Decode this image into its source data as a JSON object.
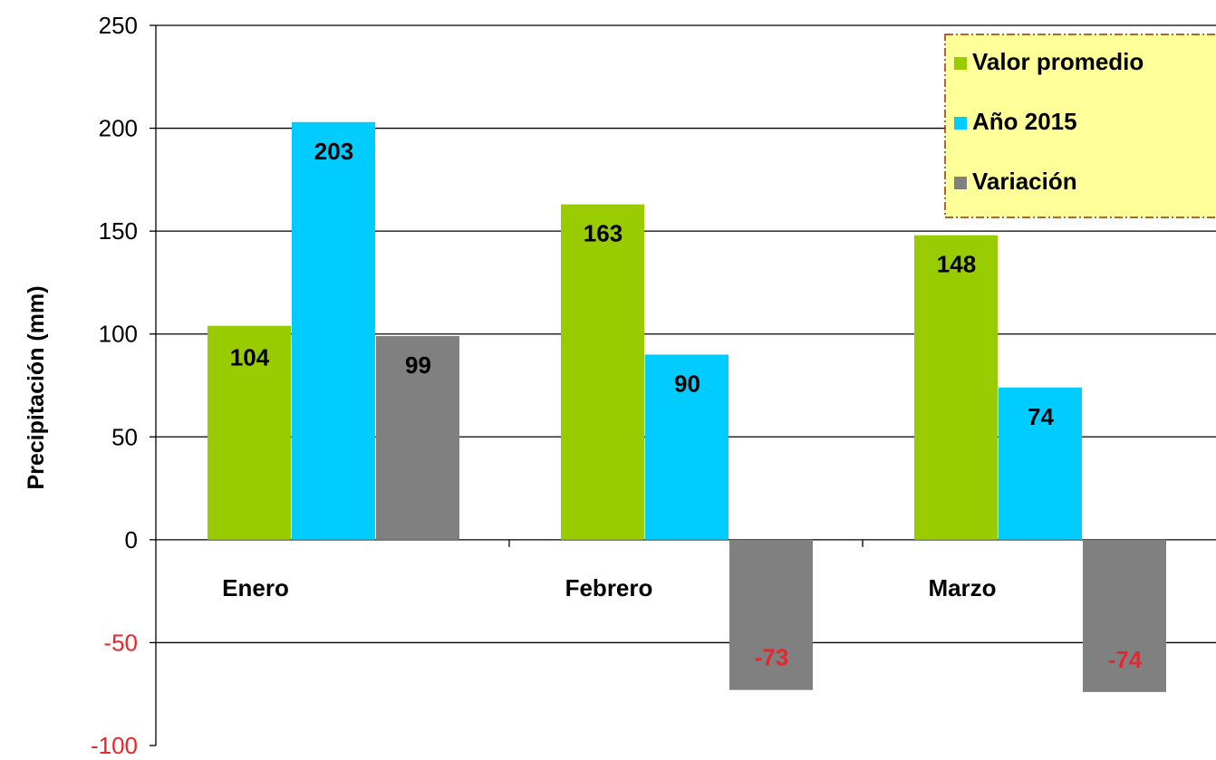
{
  "chart_data": {
    "type": "bar",
    "title": "",
    "xlabel": "",
    "ylabel": "Precipitación (mm)",
    "ylim": [
      -100,
      250
    ],
    "yticks": [
      -100,
      -50,
      0,
      50,
      100,
      150,
      200,
      250
    ],
    "grid": true,
    "legend_position": "top-right",
    "categories": [
      "Enero",
      "Febrero",
      "Marzo"
    ],
    "series": [
      {
        "name": "Valor promedio",
        "color": "#99cc00",
        "values": [
          104,
          163,
          148
        ],
        "labels": [
          "104",
          "163",
          "148"
        ]
      },
      {
        "name": "Año 2015",
        "color": "#00ccff",
        "values": [
          203,
          90,
          74
        ],
        "labels": [
          "203",
          "90",
          "74"
        ]
      },
      {
        "name": "Variación",
        "color": "#808080",
        "values": [
          99,
          -73,
          -74
        ],
        "labels": [
          "99",
          "-73",
          "-74"
        ]
      }
    ],
    "negative_label_color": "#e8262d",
    "legend_background": "#ffff99",
    "legend_border": "#993300"
  }
}
